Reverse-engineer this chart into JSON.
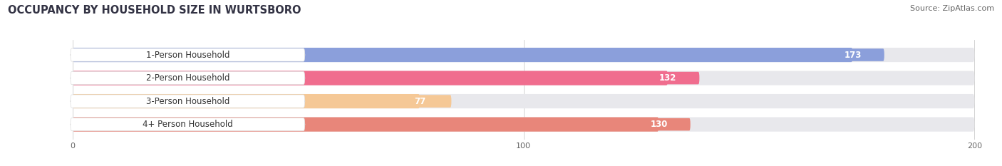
{
  "title": "OCCUPANCY BY HOUSEHOLD SIZE IN WURTSBORO",
  "source": "Source: ZipAtlas.com",
  "categories": [
    "1-Person Household",
    "2-Person Household",
    "3-Person Household",
    "4+ Person Household"
  ],
  "values": [
    173,
    132,
    77,
    130
  ],
  "bar_colors": [
    "#8b9fdb",
    "#f06d8e",
    "#f5c896",
    "#e8867a"
  ],
  "bar_bg_color": "#e8e8ec",
  "label_bg_color": "#ffffff",
  "xlim": [
    -15,
    205
  ],
  "xmin": 0,
  "xmax": 200,
  "xticks": [
    0,
    100,
    200
  ],
  "title_fontsize": 10.5,
  "label_fontsize": 8.5,
  "value_fontsize": 8.5,
  "source_fontsize": 8,
  "background_color": "#ffffff"
}
